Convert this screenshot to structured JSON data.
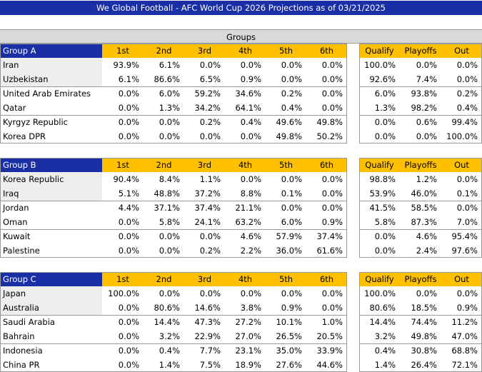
{
  "title": "We Global Football - AFC World Cup 2026 Projections as of 03/21/2025",
  "groups_header": "Groups",
  "columns": [
    "1st",
    "2nd",
    "3rd",
    "4th",
    "5th",
    "6th"
  ],
  "outcome_columns": [
    "Qualify",
    "Playoffs",
    "Out"
  ],
  "groups": [
    {
      "name": "Group A",
      "rows": [
        {
          "team": "Iran",
          "places": [
            "93.9%",
            "6.1%",
            "0.0%",
            "0.0%",
            "0.0%",
            "0.0%"
          ],
          "outcomes": [
            "100.0%",
            "0.0%",
            "0.0%"
          ]
        },
        {
          "team": "Uzbekistan",
          "places": [
            "6.1%",
            "86.6%",
            "6.5%",
            "0.9%",
            "0.0%",
            "0.0%"
          ],
          "outcomes": [
            "92.6%",
            "7.4%",
            "0.0%"
          ]
        },
        {
          "team": "United Arab Emirates",
          "places": [
            "0.0%",
            "6.0%",
            "59.2%",
            "34.6%",
            "0.2%",
            "0.0%"
          ],
          "outcomes": [
            "6.0%",
            "93.8%",
            "0.2%"
          ]
        },
        {
          "team": "Qatar",
          "places": [
            "0.0%",
            "1.3%",
            "34.2%",
            "64.1%",
            "0.4%",
            "0.0%"
          ],
          "outcomes": [
            "1.3%",
            "98.2%",
            "0.4%"
          ]
        },
        {
          "team": "Kyrgyz Republic",
          "places": [
            "0.0%",
            "0.0%",
            "0.2%",
            "0.4%",
            "49.6%",
            "49.8%"
          ],
          "outcomes": [
            "0.0%",
            "0.6%",
            "99.4%"
          ]
        },
        {
          "team": "Korea DPR",
          "places": [
            "0.0%",
            "0.0%",
            "0.0%",
            "0.0%",
            "49.8%",
            "50.2%"
          ],
          "outcomes": [
            "0.0%",
            "0.0%",
            "100.0%"
          ]
        }
      ]
    },
    {
      "name": "Group B",
      "rows": [
        {
          "team": "Korea Republic",
          "places": [
            "90.4%",
            "8.4%",
            "1.1%",
            "0.0%",
            "0.0%",
            "0.0%"
          ],
          "outcomes": [
            "98.8%",
            "1.2%",
            "0.0%"
          ]
        },
        {
          "team": "Iraq",
          "places": [
            "5.1%",
            "48.8%",
            "37.2%",
            "8.8%",
            "0.1%",
            "0.0%"
          ],
          "outcomes": [
            "53.9%",
            "46.0%",
            "0.1%"
          ]
        },
        {
          "team": "Jordan",
          "places": [
            "4.4%",
            "37.1%",
            "37.4%",
            "21.1%",
            "0.0%",
            "0.0%"
          ],
          "outcomes": [
            "41.5%",
            "58.5%",
            "0.0%"
          ]
        },
        {
          "team": "Oman",
          "places": [
            "0.0%",
            "5.8%",
            "24.1%",
            "63.2%",
            "6.0%",
            "0.9%"
          ],
          "outcomes": [
            "5.8%",
            "87.3%",
            "7.0%"
          ]
        },
        {
          "team": "Kuwait",
          "places": [
            "0.0%",
            "0.0%",
            "0.0%",
            "4.6%",
            "57.9%",
            "37.4%"
          ],
          "outcomes": [
            "0.0%",
            "4.6%",
            "95.4%"
          ]
        },
        {
          "team": "Palestine",
          "places": [
            "0.0%",
            "0.0%",
            "0.2%",
            "2.2%",
            "36.0%",
            "61.6%"
          ],
          "outcomes": [
            "0.0%",
            "2.4%",
            "97.6%"
          ]
        }
      ]
    },
    {
      "name": "Group C",
      "rows": [
        {
          "team": "Japan",
          "places": [
            "100.0%",
            "0.0%",
            "0.0%",
            "0.0%",
            "0.0%",
            "0.0%"
          ],
          "outcomes": [
            "100.0%",
            "0.0%",
            "0.0%"
          ]
        },
        {
          "team": "Australia",
          "places": [
            "0.0%",
            "80.6%",
            "14.6%",
            "3.8%",
            "0.9%",
            "0.0%"
          ],
          "outcomes": [
            "80.6%",
            "18.5%",
            "0.9%"
          ]
        },
        {
          "team": "Saudi Arabia",
          "places": [
            "0.0%",
            "14.4%",
            "47.3%",
            "27.2%",
            "10.1%",
            "1.0%"
          ],
          "outcomes": [
            "14.4%",
            "74.4%",
            "11.2%"
          ]
        },
        {
          "team": "Bahrain",
          "places": [
            "0.0%",
            "3.2%",
            "22.9%",
            "27.0%",
            "26.5%",
            "20.5%"
          ],
          "outcomes": [
            "3.2%",
            "49.8%",
            "47.0%"
          ]
        },
        {
          "team": "Indonesia",
          "places": [
            "0.0%",
            "0.4%",
            "7.7%",
            "23.1%",
            "35.0%",
            "33.9%"
          ],
          "outcomes": [
            "0.4%",
            "30.8%",
            "68.8%"
          ]
        },
        {
          "team": "China PR",
          "places": [
            "0.0%",
            "1.4%",
            "7.5%",
            "18.9%",
            "27.6%",
            "44.6%"
          ],
          "outcomes": [
            "1.4%",
            "26.4%",
            "72.1%"
          ]
        }
      ]
    }
  ]
}
